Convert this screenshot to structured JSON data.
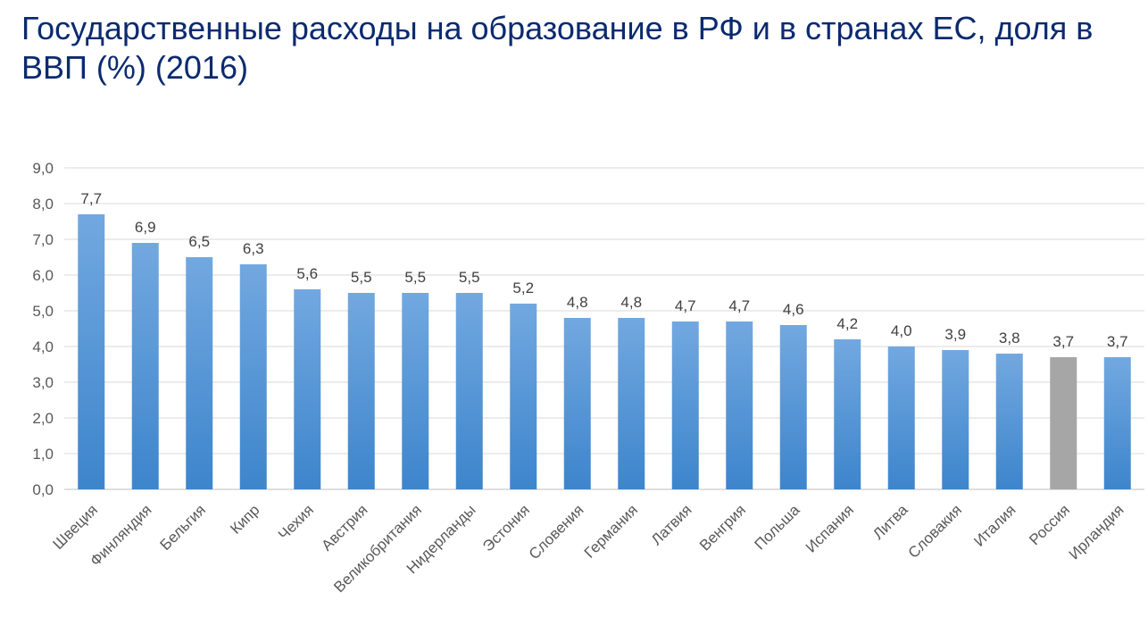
{
  "title": "Государственные расходы на образование в РФ и в странах ЕС, доля в ВВП (%) (2016)",
  "colors": {
    "bar": "#5b9bd5",
    "highlight": "#a6a6a6",
    "grid": "#d9d9d9",
    "title": "#0b2a6f"
  },
  "chart_data": {
    "type": "bar",
    "title": "Государственные расходы на образование в РФ и в странах ЕС, доля в ВВП (%) (2016)",
    "categories": [
      "Швеция",
      "Финляндия",
      "Бельгия",
      "Кипр",
      "Чехия",
      "Австрия",
      "Великобритания",
      "Нидерланды",
      "Эстония",
      "Словения",
      "Германия",
      "Латвия",
      "Венгрия",
      "Польша",
      "Испания",
      "Литва",
      "Словакия",
      "Италия",
      "Россия",
      "Ирландия"
    ],
    "values": [
      7.7,
      6.9,
      6.5,
      6.3,
      5.6,
      5.5,
      5.5,
      5.5,
      5.2,
      4.8,
      4.8,
      4.7,
      4.7,
      4.6,
      4.2,
      4.0,
      3.9,
      3.8,
      3.7,
      3.7
    ],
    "data_labels": [
      "7,7",
      "6,9",
      "6,5",
      "6,3",
      "5,6",
      "5,5",
      "5,5",
      "5,5",
      "5,2",
      "4,8",
      "4,8",
      "4,7",
      "4,7",
      "4,6",
      "4,2",
      "4,0",
      "3,9",
      "3,8",
      "3,7",
      "3,7"
    ],
    "highlight_category": "Россия",
    "ylim": [
      0,
      9
    ],
    "yticks": [
      "0,0",
      "1,0",
      "2,0",
      "3,0",
      "4,0",
      "5,0",
      "6,0",
      "7,0",
      "8,0",
      "9,0"
    ],
    "xlabel": "",
    "ylabel": "",
    "grid": true,
    "legend": "none"
  }
}
